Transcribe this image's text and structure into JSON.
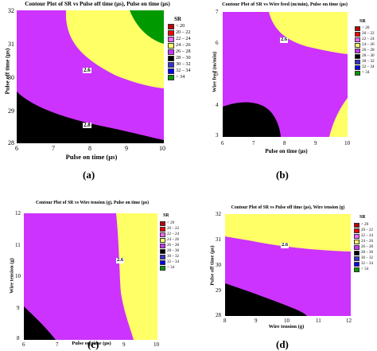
{
  "colors": {
    "lt20": "#c00000",
    "r20_22": "#ff0000",
    "r22_24": "#ff66ff",
    "r24_26": "#ffff66",
    "r26_28": "#cc33ff",
    "r28_30": "#000000",
    "r30_32": "#3333cc",
    "r32_34": "#0000ff",
    "gt34": "#009900"
  },
  "legend": {
    "title": "SR",
    "entries": [
      "< 20",
      "20 – 22",
      "22 – 24",
      "24 – 26",
      "26 – 28",
      "28 – 30",
      "30 – 32",
      "32 – 34",
      "> 34"
    ]
  },
  "chart_data": [
    {
      "type": "contour",
      "caption": "(a)",
      "title": "Contour Plot of SR vs Pulse off time (µs), Pulse on time (µs)",
      "xlabel": "Pulse on time (µs)",
      "ylabel": "Pulse off time (µs)",
      "xlim": [
        6,
        10
      ],
      "ylim": [
        28,
        32
      ],
      "xticks": [
        "6",
        "7",
        "8",
        "9",
        "10"
      ],
      "yticks": [
        "28",
        "29",
        "30",
        "31",
        "32"
      ],
      "contour_labels": [
        "2.6",
        "2.8"
      ],
      "regions_present": [
        "26 – 28",
        "24 – 26",
        "28 – 30",
        "> 34"
      ]
    },
    {
      "type": "contour",
      "caption": "(b)",
      "title": "Contour Plot of SR vs Wire feed (m/min), Pulse on time (µs)",
      "xlabel": "Pulse on time (µs)",
      "ylabel": "Wire feed (m/min)",
      "xlim": [
        6,
        10
      ],
      "ylim": [
        3,
        7
      ],
      "xticks": [
        "6",
        "7",
        "8",
        "9",
        "10"
      ],
      "yticks": [
        "3",
        "4",
        "5",
        "6",
        "7"
      ],
      "contour_labels": [
        "2.6"
      ],
      "regions_present": [
        "26 – 28",
        "24 – 26",
        "28 – 30"
      ]
    },
    {
      "type": "contour",
      "caption": "(c)",
      "title": "Contour Plot of SR vs Wire tension (g), Pulse on time (µs)",
      "xlabel": "Pulse on time (µs)",
      "ylabel": "Wire tension (g)",
      "xlim": [
        6,
        10
      ],
      "ylim": [
        8,
        12
      ],
      "xticks": [
        "6",
        "7",
        "8",
        "9",
        "10"
      ],
      "yticks": [
        "8",
        "9",
        "10",
        "11",
        "12"
      ],
      "contour_labels": [
        "2.6"
      ],
      "regions_present": [
        "26 – 28",
        "24 – 26",
        "28 – 30"
      ]
    },
    {
      "type": "contour",
      "caption": "(d)",
      "title": "Contour Plot of SR vs Pulse off time (µs), Wire tension (g)",
      "xlabel": "Wire tension (g)",
      "ylabel": "Pulse off time (µs)",
      "xlim": [
        8,
        12
      ],
      "ylim": [
        28,
        32
      ],
      "xticks": [
        "8",
        "9",
        "10",
        "11",
        "12"
      ],
      "yticks": [
        "28",
        "29",
        "30",
        "31",
        "32"
      ],
      "contour_labels": [
        "2.6"
      ],
      "regions_present": [
        "26 – 28",
        "24 – 26",
        "28 – 30"
      ]
    }
  ]
}
